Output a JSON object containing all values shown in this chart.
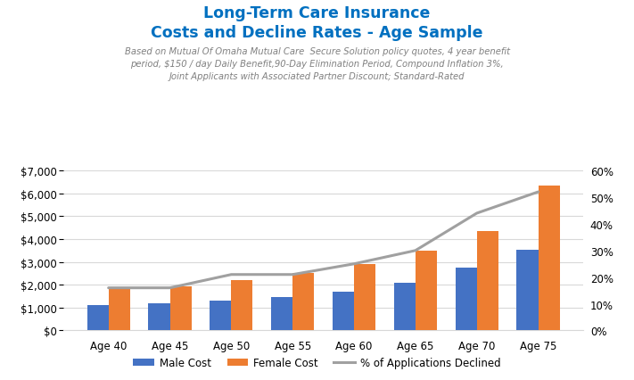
{
  "title_line1": "Long-Term Care Insurance",
  "title_line2": "Costs and Decline Rates - Age Sample",
  "subtitle": "Based on Mutual Of Omaha Mutual Care  Secure Solution policy quotes, 4 year benefit\nperiod, $150 / day Daily Benefit,90-Day Elimination Period, Compound Inflation 3%,\nJoint Applicants with Associated Partner Discount; Standard-Rated",
  "categories": [
    "Age 40",
    "Age 45",
    "Age 50",
    "Age 55",
    "Age 60",
    "Age 65",
    "Age 70",
    "Age 75"
  ],
  "male_cost": [
    1100,
    1175,
    1300,
    1450,
    1700,
    2100,
    2750,
    3550
  ],
  "female_cost": [
    1900,
    1950,
    2200,
    2500,
    2900,
    3500,
    4350,
    6350
  ],
  "pct_declined": [
    0.16,
    0.16,
    0.21,
    0.21,
    0.25,
    0.3,
    0.44,
    0.52
  ],
  "male_color": "#4472C4",
  "female_color": "#ED7D31",
  "line_color": "#A0A0A0",
  "title_color": "#0070C0",
  "subtitle_color": "#808080",
  "ylim_left": [
    0,
    7000
  ],
  "ylim_right": [
    0,
    0.6
  ],
  "bar_width": 0.35,
  "background_color": "#ffffff"
}
